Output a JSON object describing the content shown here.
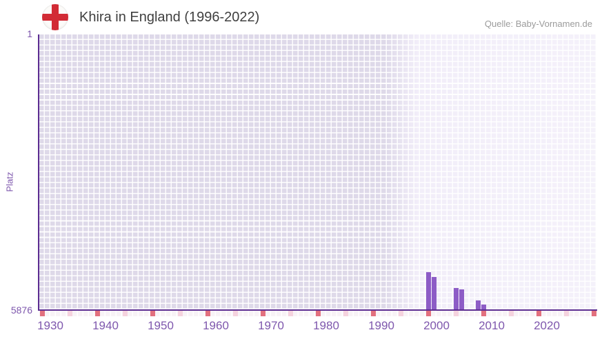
{
  "header": {
    "title": "Khira in England (1996-2022)",
    "source": "Quelle: Baby-Vornamen.de",
    "flag": "england-st-george-cross"
  },
  "chart_data": {
    "type": "bar",
    "title": "Khira in England (1996-2022)",
    "xlabel": "",
    "ylabel": "Platz",
    "y_axis": {
      "top_label": "1",
      "bottom_label": "5876",
      "min": 1,
      "max": 5876,
      "inverted": true
    },
    "x_axis": {
      "start_year": 1928,
      "end_year": 2028,
      "tick_labels": [
        "1930",
        "1940",
        "1950",
        "1960",
        "1970",
        "1980",
        "1990",
        "2000",
        "2010",
        "2020"
      ],
      "marker_years_dark": [
        1928,
        1938,
        1948,
        1958,
        1968,
        1978,
        1988,
        1998,
        2008,
        2018,
        2028
      ],
      "marker_years_light": [
        1933,
        1943,
        1953,
        1963,
        1973,
        1983,
        1993,
        2003,
        2013,
        2023
      ]
    },
    "series": [
      {
        "name": "Khira",
        "points": [
          {
            "year": 1998,
            "rank": 5088
          },
          {
            "year": 1999,
            "rank": 5190
          },
          {
            "year": 2003,
            "rank": 5419
          },
          {
            "year": 2004,
            "rank": 5456
          },
          {
            "year": 2007,
            "rank": 5684
          },
          {
            "year": 2008,
            "rank": 5780
          }
        ]
      }
    ],
    "legend": "none",
    "grid": true,
    "colors": {
      "bar": "#8d5cc6",
      "axis": "#5c2d91",
      "axis_label": "#7e57ad",
      "marker_dark": "#e2707e",
      "marker_light": "#f5d3de",
      "plot_bg_left": "#ded9e9",
      "plot_bg_right": "#f4f1fa",
      "title_text": "#3f3f3f",
      "source_text": "#9b9b9b",
      "flag_red": "#d22b35"
    }
  }
}
